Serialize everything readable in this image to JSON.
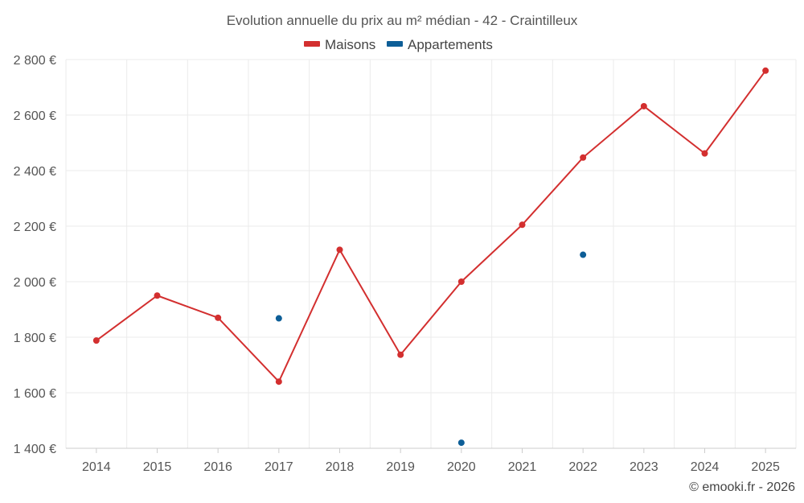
{
  "chart_data": {
    "type": "line",
    "title": "Evolution annuelle du prix au m² médian - 42 - Craintilleux",
    "categories": [
      "2014",
      "2015",
      "2016",
      "2017",
      "2018",
      "2019",
      "2020",
      "2021",
      "2022",
      "2023",
      "2024",
      "2025"
    ],
    "series": [
      {
        "name": "Maisons",
        "color": "#d32f2f",
        "values": [
          1788,
          1950,
          1870,
          1640,
          2115,
          1737,
          2000,
          2205,
          2447,
          2632,
          2462,
          2760
        ]
      },
      {
        "name": "Appartements",
        "color": "#0d5e97",
        "values": [
          null,
          null,
          null,
          1868,
          null,
          null,
          1420,
          null,
          2097,
          null,
          null,
          null
        ]
      }
    ],
    "ylim": [
      1400,
      2800
    ],
    "yticks": [
      1400,
      1600,
      1800,
      2000,
      2200,
      2400,
      2600,
      2800
    ],
    "ytick_labels": [
      "1 400 €",
      "1 600 €",
      "1 800 €",
      "2 000 €",
      "2 200 €",
      "2 400 €",
      "2 600 €",
      "2 800 €"
    ],
    "grid": true,
    "legend": "top-center"
  },
  "credit": "© emooki.fr - 2026"
}
